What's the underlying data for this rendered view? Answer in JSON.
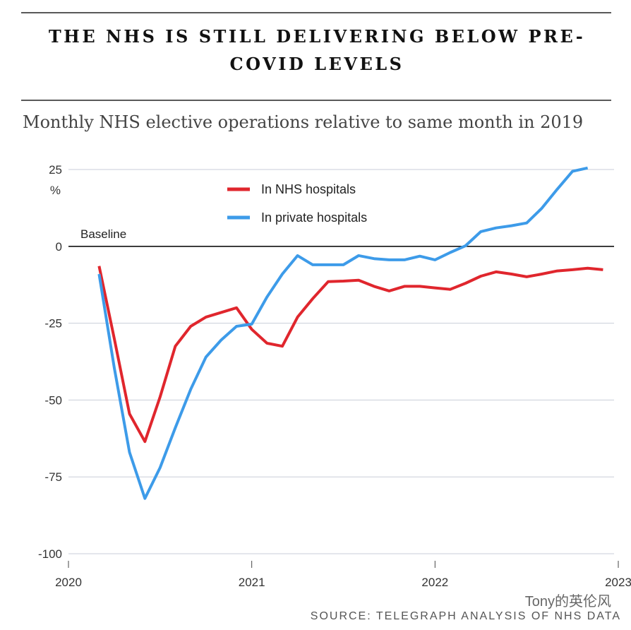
{
  "chart_data": {
    "type": "line",
    "title": "THE NHS IS STILL DELIVERING BELOW PRE-COVID LEVELS",
    "subtitle": "Monthly NHS elective operations relative to same month in 2019",
    "y_unit": "%",
    "annotation": "Baseline",
    "source": "SOURCE: TELEGRAPH ANALYSIS OF NHS DATA",
    "watermark": "Tony的英伦风",
    "x": [
      2020.167,
      2020.25,
      2020.333,
      2020.417,
      2020.5,
      2020.583,
      2020.667,
      2020.75,
      2020.833,
      2020.917,
      2021,
      2021.083,
      2021.167,
      2021.25,
      2021.333,
      2021.417,
      2021.5,
      2021.583,
      2021.667,
      2021.75,
      2021.833,
      2021.917,
      2022,
      2022.083,
      2022.167,
      2022.25,
      2022.333,
      2022.417,
      2022.5,
      2022.583,
      2022.667,
      2022.75,
      2022.833,
      2022.917
    ],
    "series": [
      {
        "name": "In NHS hospitals",
        "color": "#e0262d",
        "values": [
          -6.4,
          -30,
          -54.5,
          -63.5,
          -49,
          -32.5,
          -26,
          -23,
          -21.5,
          -20,
          -27,
          -31.5,
          -32.5,
          -23,
          -17,
          -11.5,
          -11.3,
          -11,
          -13,
          -14.5,
          -13,
          -13,
          -13.5,
          -14,
          -12,
          -9.7,
          -8.3,
          -9,
          -9.9,
          -9,
          -8,
          -7.6,
          -7.1,
          -7.6
        ]
      },
      {
        "name": "In private hospitals",
        "color": "#3d9be9",
        "values": [
          -9,
          -39.5,
          -67,
          -82,
          -72,
          -59,
          -46.5,
          -36,
          -30.5,
          -26,
          -25.3,
          -16.5,
          -9,
          -3,
          -6,
          -6,
          -6,
          -3,
          -4,
          -4.4,
          -4.4,
          -3.2,
          -4.4,
          -2,
          0.2,
          4.8,
          6,
          6.7,
          7.6,
          12.4,
          18.6,
          24.4,
          25.5,
          null
        ]
      }
    ],
    "xlim": [
      2020,
      2023
    ],
    "xticks": [
      2020,
      2021,
      2022,
      2023
    ],
    "ylim": [
      -100,
      25
    ],
    "yticks": [
      25,
      0,
      -25,
      -50,
      -75,
      -100
    ],
    "grid": true
  }
}
